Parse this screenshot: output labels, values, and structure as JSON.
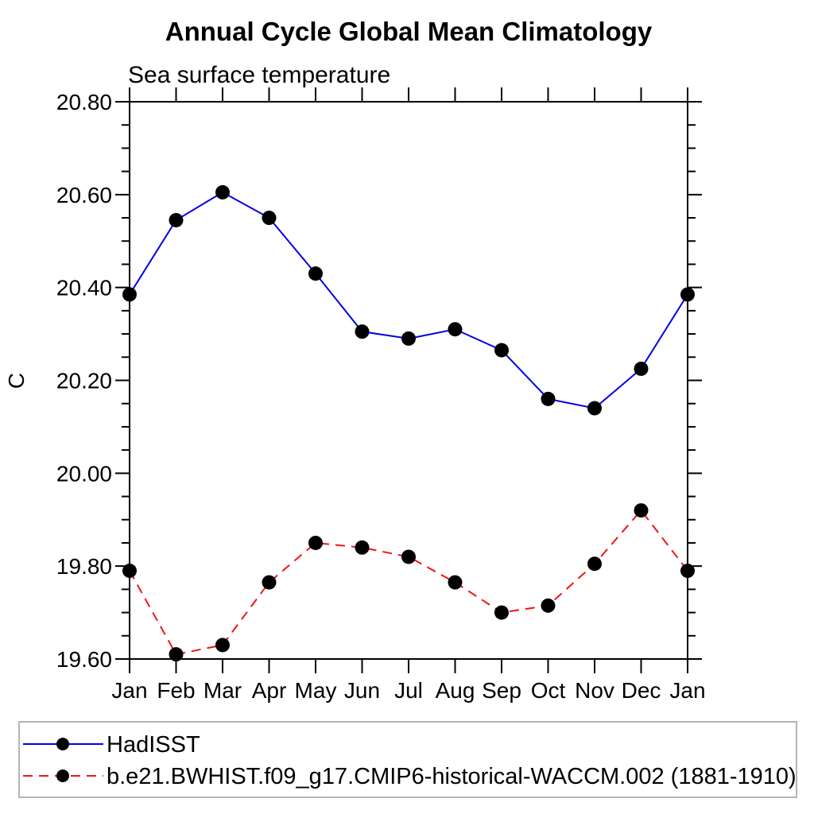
{
  "page": {
    "background": "#ffffff"
  },
  "chart_data": {
    "type": "line",
    "title": "Annual Cycle Global Mean Climatology",
    "subtitle": "Sea surface temperature",
    "xlabel": "",
    "ylabel": "C",
    "categories": [
      "Jan",
      "Feb",
      "Mar",
      "Apr",
      "May",
      "Jun",
      "Jul",
      "Aug",
      "Sep",
      "Oct",
      "Nov",
      "Dec",
      "Jan"
    ],
    "series": [
      {
        "name": "HadISST",
        "line_color": "#0000e6",
        "line_style": "solid",
        "marker": "filled-circle",
        "marker_color": "#000000",
        "values": [
          20.385,
          20.545,
          20.605,
          20.55,
          20.43,
          20.305,
          20.29,
          20.31,
          20.265,
          20.16,
          20.14,
          20.225,
          20.385
        ]
      },
      {
        "name": "b.e21.BWHIST.f09_g17.CMIP6-historical-WACCM.002 (1881-1910)",
        "line_color": "#f01414",
        "line_style": "dashed",
        "marker": "filled-circle",
        "marker_color": "#000000",
        "values": [
          19.79,
          19.61,
          19.63,
          19.765,
          19.85,
          19.84,
          19.82,
          19.765,
          19.7,
          19.715,
          19.805,
          19.92,
          19.79
        ]
      }
    ],
    "ylim": [
      19.6,
      20.8
    ],
    "y_major_tick_values": [
      19.6,
      19.8,
      20.0,
      20.2,
      20.4,
      20.6,
      20.8
    ],
    "y_tick_labels": [
      "19.60",
      "19.80",
      "20.00",
      "20.20",
      "20.40",
      "20.60",
      "20.80"
    ],
    "y_minor_tick_step": 0.05,
    "grid": false,
    "frame_color": "#000000",
    "legend_position": "bottom-left-box"
  }
}
